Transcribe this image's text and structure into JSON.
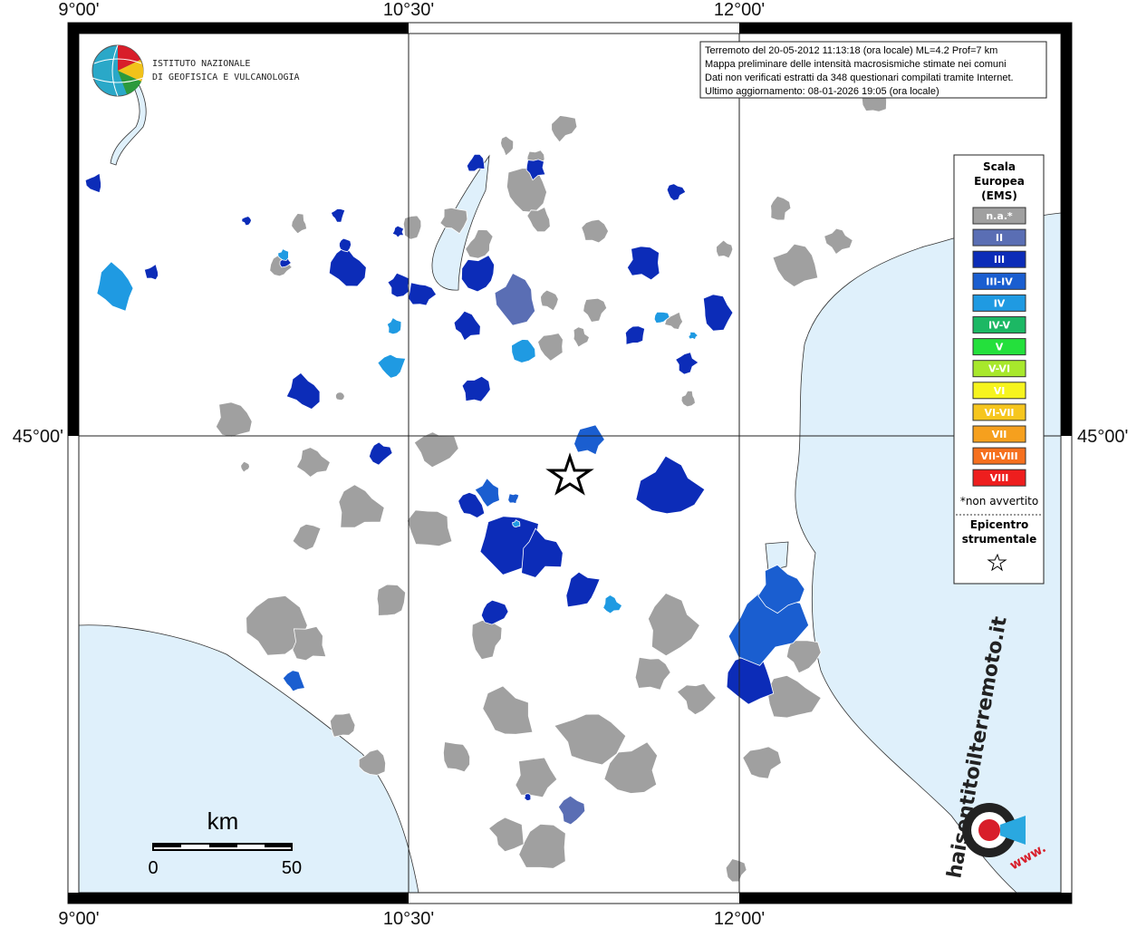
{
  "axes": {
    "lon_labels": [
      "9°00'",
      "10°30'",
      "12°00'"
    ],
    "lat_labels": [
      "45°00'"
    ]
  },
  "logo": {
    "line1": "ISTITUTO NAZIONALE",
    "line2": "DI GEOFISICA E VULCANOLOGIA"
  },
  "info": {
    "lines": [
      "Terremoto del 20-05-2012 11:13:18 (ora locale) ML=4.2 Prof=7 km",
      "Mappa preliminare delle intensità macrosismiche stimate nei comuni",
      "Dati non verificati estratti da 348 questionari compilati tramite Internet.",
      "Ultimo aggiornamento: 08-01-2026 19:05 (ora locale)"
    ]
  },
  "legend": {
    "title_lines": [
      "Scala",
      "Europea",
      "(EMS)"
    ],
    "items": [
      {
        "label": "n.a.*",
        "color": "#a0a0a0"
      },
      {
        "label": "II",
        "color": "#5a6eb4"
      },
      {
        "label": "III",
        "color": "#0c2cb8"
      },
      {
        "label": "III-IV",
        "color": "#1a5ed0"
      },
      {
        "label": "IV",
        "color": "#1f9ae2"
      },
      {
        "label": "IV-V",
        "color": "#1cb864"
      },
      {
        "label": "V",
        "color": "#24e03c"
      },
      {
        "label": "V-VI",
        "color": "#a8e82c"
      },
      {
        "label": "VI",
        "color": "#f6f41e"
      },
      {
        "label": "VI-VII",
        "color": "#f6c61e"
      },
      {
        "label": "VII",
        "color": "#f6a01e"
      },
      {
        "label": "VII-VIII",
        "color": "#f6701e"
      },
      {
        "label": "VIII",
        "color": "#ee1e1e"
      }
    ],
    "footnote": "*non avvertito",
    "epicenter_lines": [
      "Epicentro",
      "strumentale"
    ]
  },
  "scale_bar": {
    "unit": "km",
    "labels": [
      "0",
      "50"
    ]
  },
  "badge": {
    "text": "haisentitoilterremoto.it",
    "www": "www."
  }
}
